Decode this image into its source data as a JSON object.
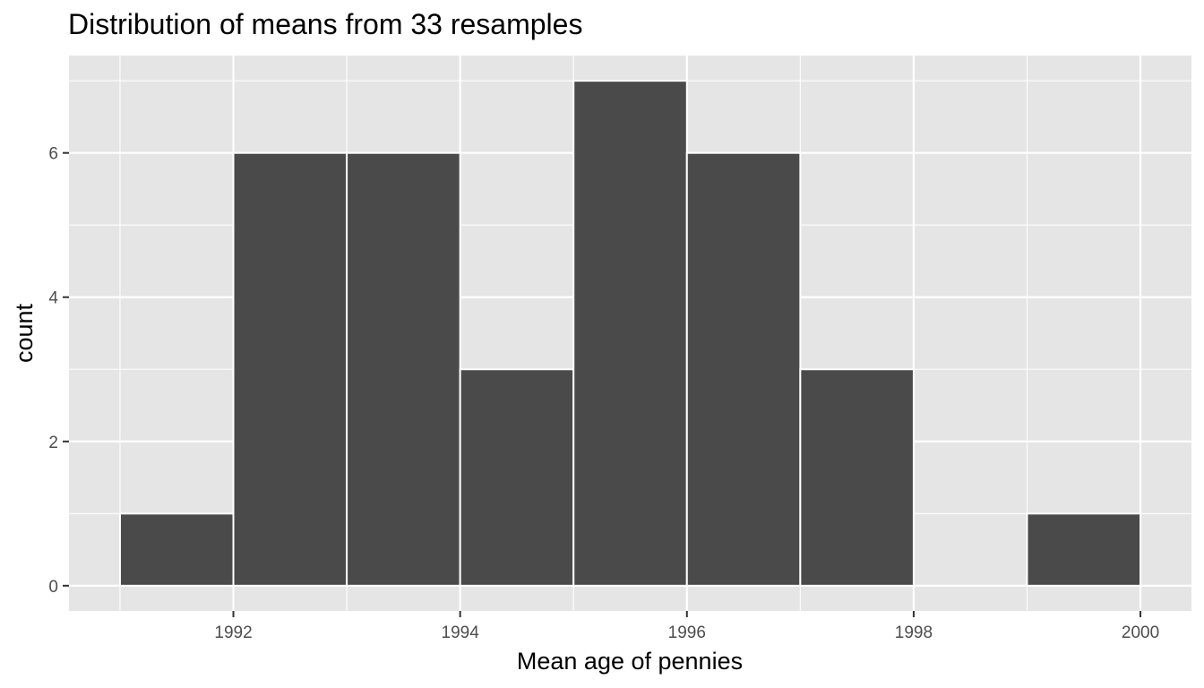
{
  "chart_data": {
    "type": "bar",
    "title": "Distribution of means from 33 resamples",
    "xlabel": "Mean age of pennies",
    "ylabel": "count",
    "bins": [
      {
        "x_start": 1991,
        "x_end": 1992,
        "count": 1
      },
      {
        "x_start": 1992,
        "x_end": 1993,
        "count": 6
      },
      {
        "x_start": 1993,
        "x_end": 1994,
        "count": 6
      },
      {
        "x_start": 1994,
        "x_end": 1995,
        "count": 3
      },
      {
        "x_start": 1995,
        "x_end": 1996,
        "count": 7
      },
      {
        "x_start": 1996,
        "x_end": 1997,
        "count": 6
      },
      {
        "x_start": 1997,
        "x_end": 1998,
        "count": 3
      },
      {
        "x_start": 1998,
        "x_end": 1999,
        "count": 0
      },
      {
        "x_start": 1999,
        "x_end": 2000,
        "count": 1
      }
    ],
    "xlim": [
      1990.55,
      2000.45
    ],
    "ylim": [
      -0.35,
      7.35
    ],
    "x_ticks": [
      "1992",
      "1994",
      "1996",
      "1998",
      "2000"
    ],
    "y_ticks": [
      "0",
      "2",
      "4",
      "6"
    ],
    "grid": true,
    "colors": {
      "panel_background": "#e5e5e5",
      "grid_line": "#ffffff",
      "bar_fill": "#4a4a4a",
      "bar_outline": "#ffffff",
      "tick_label": "#4d4d4d",
      "tick_mark": "#333333"
    }
  }
}
